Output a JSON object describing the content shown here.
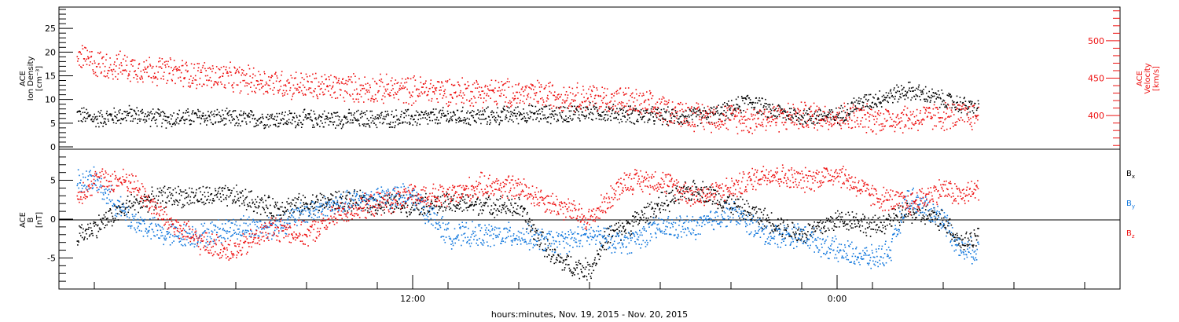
{
  "colors": {
    "black": "#000000",
    "red": "#ee1111",
    "blue": "#1177dd"
  },
  "footer": {
    "xlabel": "hours:minutes, Nov. 19, 2015 - Nov. 20, 2015"
  },
  "chart_data": [
    {
      "type": "scatter",
      "panel": "top",
      "ylabel_left": [
        "ACE",
        "Ion Density",
        "[cm⁻³]"
      ],
      "ylabel_right": [
        "ACE",
        "Velocity",
        "[km/s]"
      ],
      "yticks_left": [
        "0",
        "5",
        "10",
        "15",
        "20",
        "25"
      ],
      "yticks_right": [
        "400",
        "450",
        "500"
      ],
      "ylim_left": [
        -0.5,
        29.5
      ],
      "ylim_right": [
        355,
        545
      ],
      "series": [
        {
          "name": "Ion Density",
          "color": "black",
          "axis": "left",
          "x": [
            2.5,
            3,
            3.5,
            4,
            5,
            6,
            7,
            8,
            9,
            10,
            11,
            12,
            13,
            14,
            15,
            16,
            17,
            18,
            19,
            20,
            20.5,
            21,
            21.5,
            22,
            23,
            24,
            24.5,
            25,
            25.5,
            26,
            26.5,
            27,
            27.5,
            28
          ],
          "y": [
            7,
            6,
            6.5,
            7,
            6,
            6.5,
            6,
            6,
            6,
            6,
            6,
            6.2,
            6.5,
            6.5,
            7,
            7,
            7.5,
            7,
            6.5,
            6.5,
            7,
            8,
            10,
            8,
            6.5,
            6.5,
            9,
            10,
            11,
            12,
            11,
            10,
            9,
            8
          ]
        },
        {
          "name": "Velocity",
          "color": "red",
          "axis": "right",
          "x": [
            2.5,
            3,
            4,
            5,
            6,
            7,
            8,
            9,
            10,
            11,
            12,
            13,
            14,
            15,
            16,
            17,
            18,
            18.5,
            19,
            19.5,
            20,
            21,
            21.5,
            22,
            23,
            24,
            24.5,
            25,
            25.5,
            26,
            26.5,
            27,
            27.5,
            28
          ],
          "y": [
            480,
            470,
            465,
            460,
            455,
            450,
            445,
            440,
            438,
            436,
            435,
            434,
            432,
            430,
            428,
            425,
            420,
            415,
            410,
            405,
            400,
            398,
            395,
            398,
            400,
            400,
            398,
            396,
            396,
            397,
            398,
            400,
            400,
            400
          ]
        }
      ]
    },
    {
      "type": "scatter",
      "panel": "bottom",
      "ylabel_left": [
        "ACE",
        "B",
        "[nT]"
      ],
      "yticks_left": [
        "-5",
        "0",
        "5"
      ],
      "ylim_left": [
        -9,
        9
      ],
      "legend": [
        "B",
        "B",
        "B"
      ],
      "legend_sub": [
        "x",
        "y",
        "z"
      ],
      "xticks": [
        "12:00",
        "0:00"
      ],
      "xlim": [
        2,
        32
      ],
      "series": [
        {
          "name": "Bx",
          "color": "black",
          "x": [
            2.5,
            3,
            4,
            5,
            6,
            7,
            8,
            9,
            10,
            11,
            12,
            13,
            14,
            15,
            15.5,
            16,
            16.5,
            17,
            17.5,
            18,
            19,
            20,
            21,
            22,
            23,
            23.5,
            24,
            24.5,
            25,
            26,
            27,
            27.5,
            28
          ],
          "y": [
            -2,
            -1,
            2,
            3,
            3,
            3,
            1.5,
            2,
            2.5,
            2,
            2,
            2,
            2,
            1.5,
            -2,
            -5,
            -6,
            -6.5,
            -2,
            -1,
            2,
            4,
            2,
            0,
            -2,
            -1,
            0,
            0,
            -1,
            1,
            0,
            -3,
            -2
          ]
        },
        {
          "name": "By",
          "color": "blue",
          "x": [
            2.5,
            3,
            4,
            5,
            6,
            7,
            8,
            9,
            10,
            11,
            12,
            13,
            14,
            15,
            16,
            17,
            18,
            19,
            20,
            21,
            22,
            23,
            24,
            25,
            25.5,
            26,
            27,
            27.5,
            28
          ],
          "y": [
            5,
            5,
            0,
            -2,
            -2,
            -1,
            -1,
            1,
            2,
            3,
            3,
            -2,
            -2,
            -2,
            -3,
            -2,
            -3,
            -1,
            -1,
            1,
            -2,
            -2,
            -4,
            -5,
            -4,
            3,
            0,
            -4,
            -4
          ]
        },
        {
          "name": "Bz",
          "color": "red",
          "x": [
            2.5,
            3,
            4,
            5,
            6,
            7,
            8,
            9,
            10,
            11,
            12,
            13,
            14,
            15,
            16,
            17,
            18,
            19,
            20,
            21,
            22,
            23,
            24,
            25,
            26,
            26.5,
            27,
            27.5,
            28
          ],
          "y": [
            3,
            5,
            5,
            0,
            -3,
            -4,
            -1,
            -2,
            1,
            2,
            3,
            3,
            4.5,
            4,
            2,
            0,
            5,
            5,
            3,
            4,
            6,
            5,
            6,
            3,
            2,
            3,
            4,
            3,
            4
          ]
        }
      ]
    }
  ]
}
